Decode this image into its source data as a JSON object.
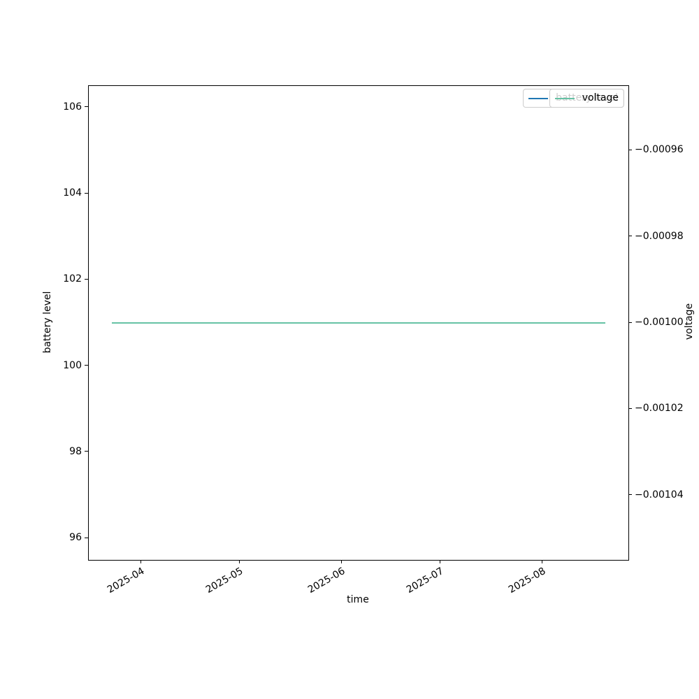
{
  "chart_data": {
    "type": "line",
    "title": "",
    "xlabel": "time",
    "background": "#ffffff",
    "spine_color": "#000000",
    "grid": false,
    "left_axis": {
      "label": "battery level",
      "ylim": [
        95.5,
        106.5
      ],
      "ticks": [
        {
          "value": 106,
          "label": "106"
        },
        {
          "value": 104,
          "label": "104"
        },
        {
          "value": 102,
          "label": "102"
        },
        {
          "value": 100,
          "label": "100"
        },
        {
          "value": 98,
          "label": "98"
        },
        {
          "value": 96,
          "label": "96"
        }
      ]
    },
    "right_axis": {
      "label": "voltage",
      "ylim": [
        -0.001055,
        -0.000945
      ],
      "ticks": [
        {
          "value": -0.00096,
          "label": "−0.00096"
        },
        {
          "value": -0.00098,
          "label": "−0.00098"
        },
        {
          "value": -0.001,
          "label": "−0.00100"
        },
        {
          "value": -0.00102,
          "label": "−0.00102"
        },
        {
          "value": -0.00104,
          "label": "−0.00104"
        }
      ]
    },
    "x_range": [
      "2025-03-16",
      "2025-08-27"
    ],
    "x_ticks": [
      {
        "date": "2025-04-01",
        "label": "2025-04"
      },
      {
        "date": "2025-05-01",
        "label": "2025-05"
      },
      {
        "date": "2025-06-01",
        "label": "2025-06"
      },
      {
        "date": "2025-07-01",
        "label": "2025-07"
      },
      {
        "date": "2025-08-01",
        "label": "2025-08"
      }
    ],
    "series": [
      {
        "name": "battery level",
        "axis": "left",
        "color": "#1f77b4",
        "x_start": "2025-03-23",
        "x_end": "2025-08-20",
        "value": 101
      },
      {
        "name": "voltage",
        "axis": "right",
        "color": "#66c2a5",
        "x_start": "2025-03-23",
        "x_end": "2025-08-20",
        "value": -0.001
      }
    ],
    "legend": {
      "position": "upper right",
      "entries": [
        "battery level",
        "voltage"
      ]
    }
  }
}
